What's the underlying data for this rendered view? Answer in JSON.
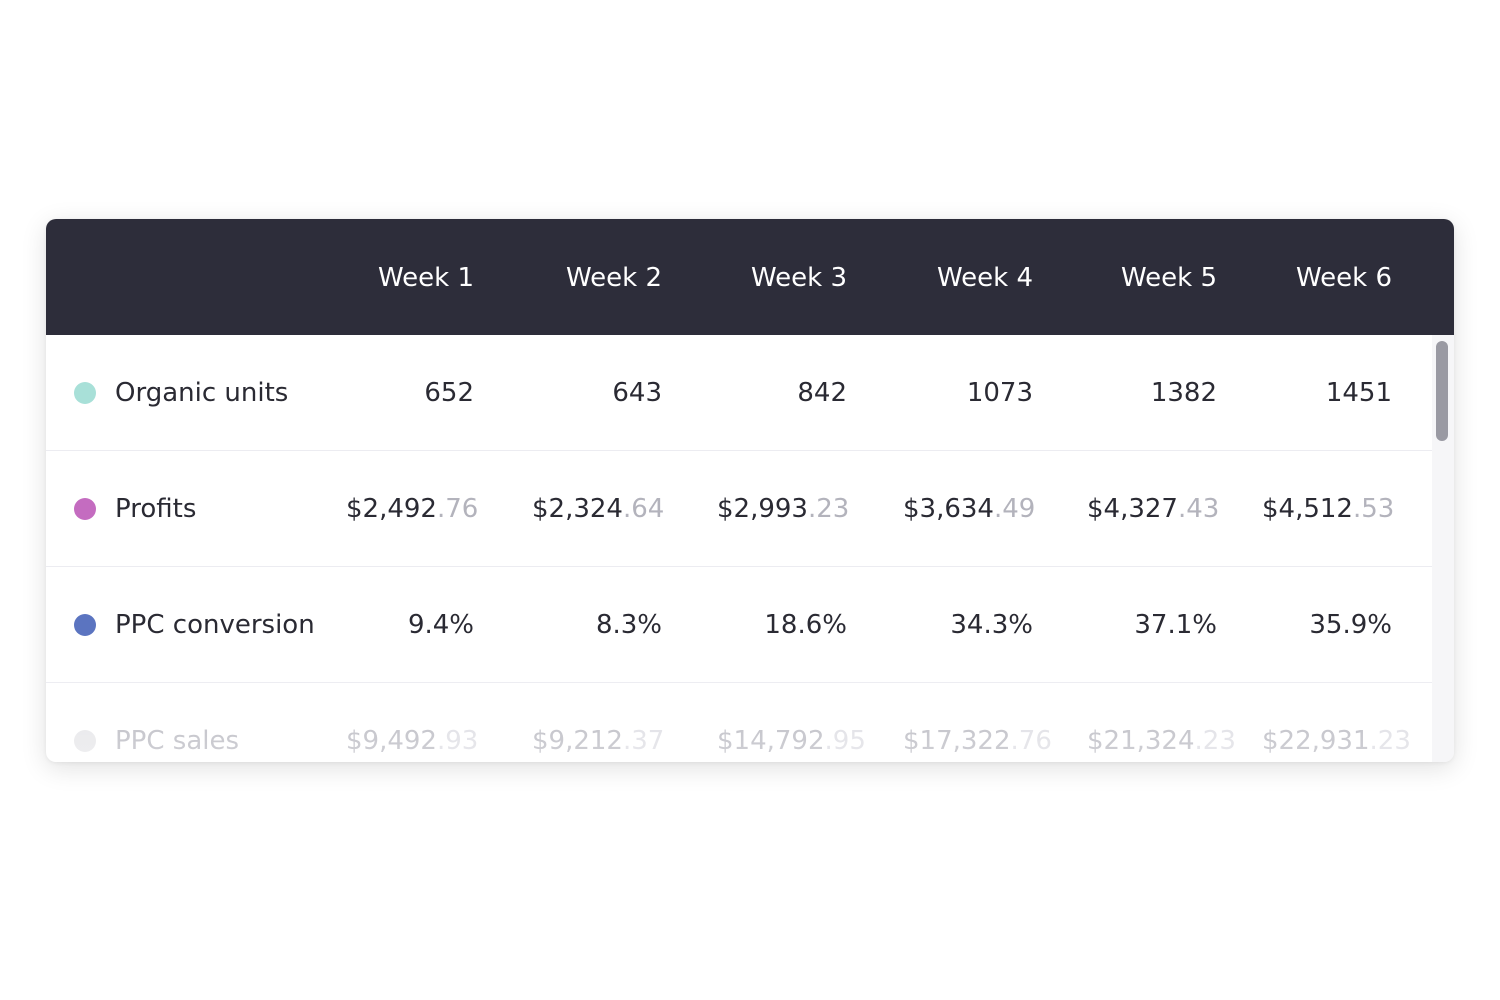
{
  "table": {
    "columns": [
      "Week 1",
      "Week 2",
      "Week 3",
      "Week 4",
      "Week 5",
      "Week 6"
    ],
    "rows": [
      {
        "label": "Organic units",
        "color": "#a8e0d8",
        "cells": [
          {
            "main": "652",
            "dec": ""
          },
          {
            "main": "643",
            "dec": ""
          },
          {
            "main": "842",
            "dec": ""
          },
          {
            "main": "1073",
            "dec": ""
          },
          {
            "main": "1382",
            "dec": ""
          },
          {
            "main": "1451",
            "dec": ""
          }
        ]
      },
      {
        "label": "Profits",
        "color": "#c46cc0",
        "cells": [
          {
            "main": "$2,492",
            "dec": ".76"
          },
          {
            "main": "$2,324",
            "dec": ".64"
          },
          {
            "main": "$2,993",
            "dec": ".23"
          },
          {
            "main": "$3,634",
            "dec": ".49"
          },
          {
            "main": "$4,327",
            "dec": ".43"
          },
          {
            "main": "$4,512",
            "dec": ".53"
          }
        ]
      },
      {
        "label": "PPC conversion",
        "color": "#5b74c0",
        "cells": [
          {
            "main": "9.4%",
            "dec": ""
          },
          {
            "main": "8.3%",
            "dec": ""
          },
          {
            "main": "18.6%",
            "dec": ""
          },
          {
            "main": "34.3%",
            "dec": ""
          },
          {
            "main": "37.1%",
            "dec": ""
          },
          {
            "main": "35.9%",
            "dec": ""
          }
        ]
      },
      {
        "label": "PPC sales",
        "color": "#e2e2e6",
        "cells": [
          {
            "main": "$9,492",
            "dec": ".93"
          },
          {
            "main": "$9,212",
            "dec": ".37"
          },
          {
            "main": "$14,792",
            "dec": ".95"
          },
          {
            "main": "$17,322",
            "dec": ".76"
          },
          {
            "main": "$21,324",
            "dec": ".23"
          },
          {
            "main": "$22,931",
            "dec": ".23"
          }
        ]
      }
    ]
  },
  "colors": {
    "header_bg": "#2d2d3a",
    "header_text": "#ffffff",
    "text": "#2a2a33",
    "decimal_text": "#b3b3bc"
  }
}
